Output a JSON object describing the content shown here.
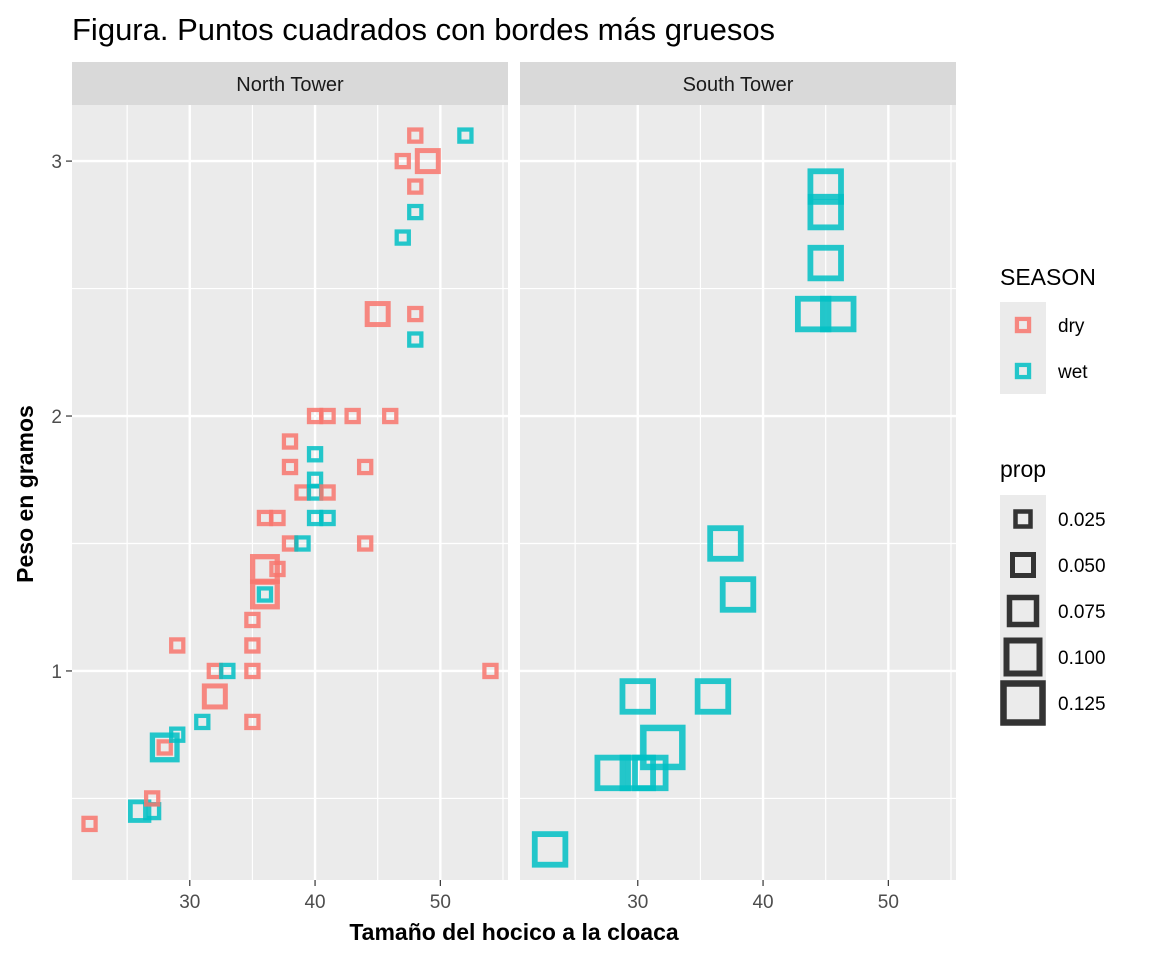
{
  "chart_data": {
    "type": "scatter",
    "title": "Figura. Puntos cuadrados con bordes más gruesos",
    "xlabel": "Tamaño del hocico a la cloaca",
    "ylabel": "Peso en gramos",
    "xlim": [
      20.6,
      55.4
    ],
    "ylim": [
      0.18,
      3.22
    ],
    "x_ticks": [
      30,
      40,
      50
    ],
    "y_ticks": [
      1,
      2,
      3
    ],
    "grid": true,
    "facets": [
      {
        "label": "North Tower",
        "points": [
          {
            "x": 22,
            "y": 0.4,
            "season": "dry",
            "prop": 0.013
          },
          {
            "x": 26,
            "y": 0.45,
            "season": "wet",
            "prop": 0.04
          },
          {
            "x": 27,
            "y": 0.45,
            "season": "wet",
            "prop": 0.02
          },
          {
            "x": 27,
            "y": 0.5,
            "season": "dry",
            "prop": 0.013
          },
          {
            "x": 28,
            "y": 0.7,
            "season": "wet",
            "prop": 0.065
          },
          {
            "x": 28,
            "y": 0.7,
            "season": "dry",
            "prop": 0.013
          },
          {
            "x": 29,
            "y": 0.75,
            "season": "wet",
            "prop": 0.013
          },
          {
            "x": 29,
            "y": 1.1,
            "season": "dry",
            "prop": 0.013
          },
          {
            "x": 31,
            "y": 0.8,
            "season": "wet",
            "prop": 0.013
          },
          {
            "x": 32,
            "y": 0.9,
            "season": "dry",
            "prop": 0.05
          },
          {
            "x": 32,
            "y": 1.0,
            "season": "dry",
            "prop": 0.013
          },
          {
            "x": 33,
            "y": 1.0,
            "season": "wet",
            "prop": 0.013
          },
          {
            "x": 35,
            "y": 0.8,
            "season": "dry",
            "prop": 0.013
          },
          {
            "x": 35,
            "y": 1.0,
            "season": "dry",
            "prop": 0.013
          },
          {
            "x": 35,
            "y": 1.1,
            "season": "dry",
            "prop": 0.013
          },
          {
            "x": 35,
            "y": 1.2,
            "season": "dry",
            "prop": 0.013
          },
          {
            "x": 36,
            "y": 1.3,
            "season": "dry",
            "prop": 0.065
          },
          {
            "x": 36,
            "y": 1.3,
            "season": "wet",
            "prop": 0.013
          },
          {
            "x": 36,
            "y": 1.4,
            "season": "dry",
            "prop": 0.065
          },
          {
            "x": 36,
            "y": 1.6,
            "season": "dry",
            "prop": 0.013
          },
          {
            "x": 37,
            "y": 1.4,
            "season": "dry",
            "prop": 0.013
          },
          {
            "x": 37,
            "y": 1.6,
            "season": "dry",
            "prop": 0.013
          },
          {
            "x": 38,
            "y": 1.5,
            "season": "dry",
            "prop": 0.013
          },
          {
            "x": 38,
            "y": 1.8,
            "season": "dry",
            "prop": 0.013
          },
          {
            "x": 38,
            "y": 1.9,
            "season": "dry",
            "prop": 0.013
          },
          {
            "x": 39,
            "y": 1.5,
            "season": "wet",
            "prop": 0.013
          },
          {
            "x": 39,
            "y": 1.7,
            "season": "dry",
            "prop": 0.013
          },
          {
            "x": 40,
            "y": 1.6,
            "season": "wet",
            "prop": 0.013
          },
          {
            "x": 40,
            "y": 1.7,
            "season": "wet",
            "prop": 0.013
          },
          {
            "x": 40,
            "y": 1.75,
            "season": "wet",
            "prop": 0.013
          },
          {
            "x": 40,
            "y": 1.85,
            "season": "wet",
            "prop": 0.013
          },
          {
            "x": 40,
            "y": 2.0,
            "season": "dry",
            "prop": 0.013
          },
          {
            "x": 41,
            "y": 1.6,
            "season": "wet",
            "prop": 0.013
          },
          {
            "x": 41,
            "y": 1.7,
            "season": "dry",
            "prop": 0.013
          },
          {
            "x": 41,
            "y": 2.0,
            "season": "dry",
            "prop": 0.013
          },
          {
            "x": 43,
            "y": 2.0,
            "season": "dry",
            "prop": 0.013
          },
          {
            "x": 44,
            "y": 1.5,
            "season": "dry",
            "prop": 0.013
          },
          {
            "x": 44,
            "y": 1.8,
            "season": "dry",
            "prop": 0.013
          },
          {
            "x": 45,
            "y": 2.4,
            "season": "dry",
            "prop": 0.05
          },
          {
            "x": 46,
            "y": 2.0,
            "season": "dry",
            "prop": 0.013
          },
          {
            "x": 47,
            "y": 2.7,
            "season": "wet",
            "prop": 0.013
          },
          {
            "x": 47,
            "y": 3.0,
            "season": "dry",
            "prop": 0.013
          },
          {
            "x": 48,
            "y": 2.3,
            "season": "wet",
            "prop": 0.013
          },
          {
            "x": 48,
            "y": 2.4,
            "season": "dry",
            "prop": 0.013
          },
          {
            "x": 48,
            "y": 2.8,
            "season": "wet",
            "prop": 0.013
          },
          {
            "x": 48,
            "y": 2.9,
            "season": "dry",
            "prop": 0.013
          },
          {
            "x": 48,
            "y": 3.1,
            "season": "dry",
            "prop": 0.013
          },
          {
            "x": 49,
            "y": 3.0,
            "season": "dry",
            "prop": 0.05
          },
          {
            "x": 52,
            "y": 3.1,
            "season": "wet",
            "prop": 0.013
          },
          {
            "x": 54,
            "y": 1.0,
            "season": "dry",
            "prop": 0.013
          }
        ]
      },
      {
        "label": "South Tower",
        "points": [
          {
            "x": 23,
            "y": 0.3,
            "season": "wet",
            "prop": 0.09
          },
          {
            "x": 28,
            "y": 0.6,
            "season": "wet",
            "prop": 0.09
          },
          {
            "x": 30,
            "y": 0.6,
            "season": "wet",
            "prop": 0.09
          },
          {
            "x": 31,
            "y": 0.6,
            "season": "wet",
            "prop": 0.09
          },
          {
            "x": 30,
            "y": 0.9,
            "season": "wet",
            "prop": 0.09
          },
          {
            "x": 32,
            "y": 0.7,
            "season": "wet",
            "prop": 0.125
          },
          {
            "x": 36,
            "y": 0.9,
            "season": "wet",
            "prop": 0.09
          },
          {
            "x": 37,
            "y": 1.5,
            "season": "wet",
            "prop": 0.09
          },
          {
            "x": 38,
            "y": 1.3,
            "season": "wet",
            "prop": 0.09
          },
          {
            "x": 44,
            "y": 2.4,
            "season": "wet",
            "prop": 0.09
          },
          {
            "x": 46,
            "y": 2.4,
            "season": "wet",
            "prop": 0.09
          },
          {
            "x": 45,
            "y": 2.6,
            "season": "wet",
            "prop": 0.09
          },
          {
            "x": 45,
            "y": 2.8,
            "season": "wet",
            "prop": 0.09
          },
          {
            "x": 45,
            "y": 2.9,
            "season": "wet",
            "prop": 0.09
          }
        ]
      }
    ],
    "legend": {
      "placement": "right",
      "color": {
        "title": "SEASON",
        "entries": [
          {
            "label": "dry",
            "color": "#F8766D"
          },
          {
            "label": "wet",
            "color": "#00BFC4"
          }
        ]
      },
      "size": {
        "title": "prop",
        "entries": [
          {
            "label": "0.025",
            "value": 0.025
          },
          {
            "label": "0.050",
            "value": 0.05
          },
          {
            "label": "0.075",
            "value": 0.075
          },
          {
            "label": "0.100",
            "value": 0.1
          },
          {
            "label": "0.125",
            "value": 0.125
          }
        ]
      }
    },
    "colors": {
      "panel_background": "#EBEBEB",
      "strip_background": "#D9D9D9",
      "grid": "#FFFFFF",
      "size_legend_marker": "#333333"
    }
  }
}
